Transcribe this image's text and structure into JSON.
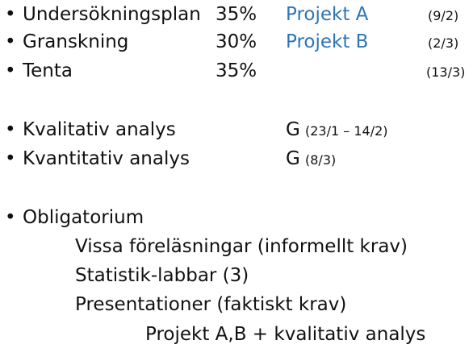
{
  "grades": [
    {
      "bullet": "•",
      "label": "Undersökningsplan",
      "percent": "35%",
      "project": "Projekt A",
      "date": "(9/2)"
    },
    {
      "bullet": "•",
      "label": "Granskning",
      "percent": "30%",
      "project": "Projekt B",
      "date": "(2/3)"
    },
    {
      "bullet": "•",
      "label": "Tenta",
      "percent": "35%",
      "project": "",
      "date": "(13/3)"
    }
  ],
  "analyses": [
    {
      "bullet": "•",
      "label": "Kvalitativ analys",
      "grade": "G",
      "date": "(23/1 – 14/2)"
    },
    {
      "bullet": "•",
      "label": "Kvantitativ analys",
      "grade": "G",
      "date": "(8/3)"
    }
  ],
  "mandatory": {
    "bullet": "•",
    "title": "Obligatorium",
    "items": [
      "Vissa föreläsningar (informellt krav)",
      "Statistik-labbar (3)",
      "Presentationer (faktiskt krav)",
      "Projekt A,B + kvalitativ analys"
    ]
  },
  "colors": {
    "text": "#111111",
    "link": "#2e75b6",
    "background": "#ffffff"
  }
}
